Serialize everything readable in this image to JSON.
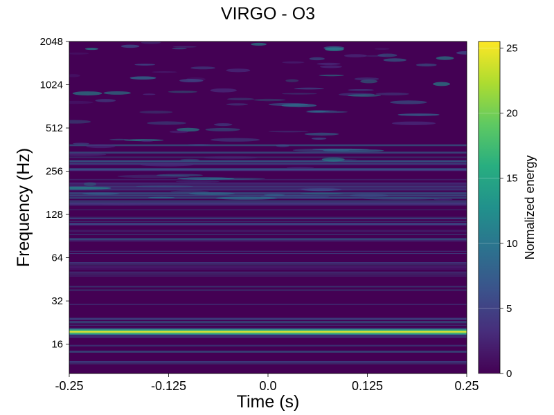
{
  "chart_data": {
    "type": "heatmap",
    "title": "VIRGO - O3",
    "xlabel": "Time (s)",
    "ylabel": "Frequency (Hz)",
    "xlim": [
      -0.25,
      0.25
    ],
    "ylim": [
      10,
      2048
    ],
    "yscale": "log2",
    "x_ticks": [
      -0.25,
      -0.125,
      0.0,
      0.125,
      0.25
    ],
    "x_tick_labels": [
      "-0.25",
      "-0.125",
      "0.0",
      "0.125",
      "0.25"
    ],
    "y_ticks": [
      16,
      32,
      64,
      128,
      256,
      512,
      1024,
      2048
    ],
    "y_tick_labels": [
      "16",
      "32",
      "64",
      "128",
      "256",
      "512",
      "1024",
      "2048"
    ],
    "colorbar": {
      "label": "Normalized energy",
      "range": [
        0,
        25.5
      ],
      "ticks": [
        0,
        5,
        10,
        15,
        20,
        25
      ],
      "tick_labels": [
        "0",
        "5",
        "10",
        "15",
        "20",
        "25"
      ],
      "colormap": "viridis"
    },
    "features": [
      {
        "frequency_hz": 19.5,
        "time_range": [
          -0.25,
          0.25
        ],
        "peak_energy": 25.5
      }
    ],
    "background_energy": 1.5
  }
}
